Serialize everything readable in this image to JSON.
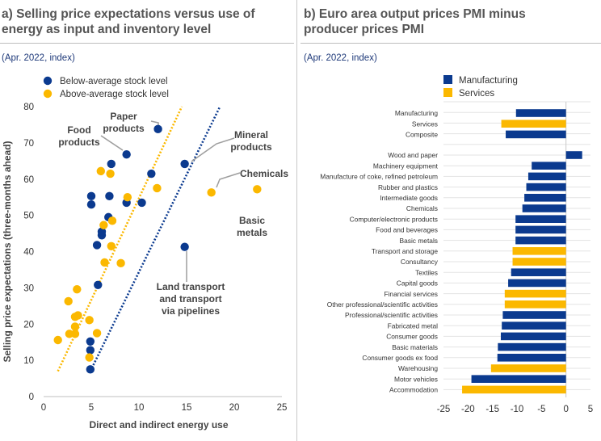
{
  "panel_a": {
    "title_line1": "a) Selling price expectations versus use of",
    "title_line2": "energy as input and inventory level",
    "subtitle": "(Apr. 2022, index)"
  },
  "panel_b": {
    "title_line1": "b) Euro area output prices PMI minus",
    "title_line2": "producer prices PMI",
    "subtitle": "(Apr. 2022, index)"
  },
  "colors": {
    "navy": "#0b3a8f",
    "yellow": "#fbb800",
    "grid": "#d9d9d9",
    "annotation": "#9e9e9e"
  },
  "chart_data": [
    {
      "type": "scatter",
      "xlabel": "Direct and indirect energy use",
      "ylabel": "Selling price expectations (three-months ahead)",
      "xlim": [
        0,
        25
      ],
      "ylim": [
        0,
        80
      ],
      "xticks": [
        0,
        5,
        10,
        15,
        20,
        25
      ],
      "yticks": [
        0,
        10,
        20,
        30,
        40,
        50,
        60,
        70,
        80
      ],
      "legend": [
        "Below-average stock level",
        "Above-average stock level"
      ],
      "series": [
        {
          "name": "Below-average stock level",
          "color": "#0b3a8f",
          "points": [
            [
              4.9,
              7.5
            ],
            [
              4.9,
              12.8
            ],
            [
              4.9,
              15.2
            ],
            [
              5.0,
              53.0
            ],
            [
              5.0,
              55.3
            ],
            [
              5.6,
              41.8
            ],
            [
              5.7,
              30.8
            ],
            [
              6.1,
              44.5
            ],
            [
              6.1,
              45.5
            ],
            [
              6.8,
              49.5
            ],
            [
              6.9,
              55.3
            ],
            [
              7.1,
              64.2
            ],
            [
              8.7,
              66.8
            ],
            [
              8.7,
              53.5
            ],
            [
              10.3,
              53.5
            ],
            [
              11.3,
              61.5
            ],
            [
              12.0,
              73.8
            ],
            [
              14.8,
              41.3
            ],
            [
              14.8,
              64.2
            ]
          ],
          "trend": [
            [
              4.9,
              7.0
            ],
            [
              18.5,
              80.0
            ]
          ]
        },
        {
          "name": "Above-average stock level",
          "color": "#fbb800",
          "points": [
            [
              1.5,
              15.6
            ],
            [
              2.6,
              26.3
            ],
            [
              2.7,
              17.3
            ],
            [
              3.3,
              17.3
            ],
            [
              3.3,
              19.3
            ],
            [
              3.3,
              22.0
            ],
            [
              3.5,
              29.6
            ],
            [
              3.6,
              22.4
            ],
            [
              4.8,
              21.1
            ],
            [
              4.8,
              10.8
            ],
            [
              5.6,
              17.5
            ],
            [
              6.0,
              62.2
            ],
            [
              6.3,
              47.3
            ],
            [
              6.4,
              37.0
            ],
            [
              7.0,
              61.5
            ],
            [
              7.2,
              48.5
            ],
            [
              7.1,
              41.5
            ],
            [
              8.1,
              36.8
            ],
            [
              8.8,
              55.0
            ],
            [
              11.9,
              57.5
            ],
            [
              17.6,
              56.3
            ],
            [
              22.4,
              57.2
            ]
          ],
          "trend": [
            [
              1.5,
              7.0
            ],
            [
              14.5,
              80.0
            ]
          ]
        }
      ],
      "annotations": [
        "Food products",
        "Paper products",
        "Mineral products",
        "Chemicals",
        "Basic metals",
        "Land transport and transport via pipelines"
      ]
    },
    {
      "type": "bar",
      "orientation": "horizontal",
      "xlim": [
        -25,
        5
      ],
      "xticks": [
        -25,
        -20,
        -15,
        -10,
        -5,
        0,
        5
      ],
      "legend": [
        "Manufacturing",
        "Services"
      ],
      "categories": [
        "Manufacturing",
        "Services",
        "Composite",
        "Wood and paper",
        "Machinery equipment",
        "Manufacture of coke, refined petroleum",
        "Rubber and plastics",
        "Intermediate goods",
        "Chemicals",
        "Computer/electronic products",
        "Food and beverages",
        "Basic metals",
        "Transport and storage",
        "Consultancy",
        "Textiles",
        "Capital goods",
        "Financial services",
        "Other professional/scientific activities",
        "Professional/scientific activities",
        "Fabricated metal",
        "Consumer goods",
        "Basic materials",
        "Consumer goods ex food",
        "Warehousing",
        "Motor vehicles",
        "Accommodation"
      ],
      "values": [
        -10.2,
        -13.2,
        -12.3,
        3.3,
        -7.0,
        -7.7,
        -8.1,
        -8.5,
        -8.9,
        -10.3,
        -10.3,
        -10.3,
        -10.9,
        -10.9,
        -11.2,
        -11.8,
        -12.5,
        -12.5,
        -12.9,
        -13.1,
        -13.3,
        -13.9,
        -14.0,
        -15.3,
        -19.3,
        -21.2
      ],
      "groups": [
        "Manufacturing",
        "Services",
        "Manufacturing",
        "Manufacturing",
        "Manufacturing",
        "Manufacturing",
        "Manufacturing",
        "Manufacturing",
        "Manufacturing",
        "Manufacturing",
        "Manufacturing",
        "Manufacturing",
        "Services",
        "Services",
        "Manufacturing",
        "Manufacturing",
        "Services",
        "Services",
        "Manufacturing",
        "Manufacturing",
        "Manufacturing",
        "Manufacturing",
        "Manufacturing",
        "Services",
        "Manufacturing",
        "Services"
      ]
    }
  ]
}
